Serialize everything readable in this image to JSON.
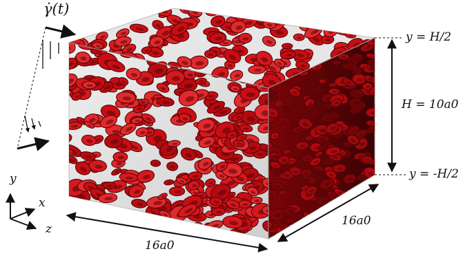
{
  "shear_rate_label": "γ̇(t)",
  "top_boundary_label": "y = H/2",
  "bottom_boundary_label": "y = -H/2",
  "height_label": "H = 10a0",
  "width_label": "16a0",
  "depth_label": "16a0",
  "axes": {
    "x": "x",
    "y": "y",
    "z": "z"
  },
  "colors": {
    "cells": "#c80e14",
    "cells_dark": "#5a0306",
    "box_face": "#dcdcdc",
    "ink": "#111111"
  },
  "icons": {
    "shear_profile": "linear-shear-velocity-profile-icon",
    "coordinate_axes": "xyz-axes-icon"
  }
}
